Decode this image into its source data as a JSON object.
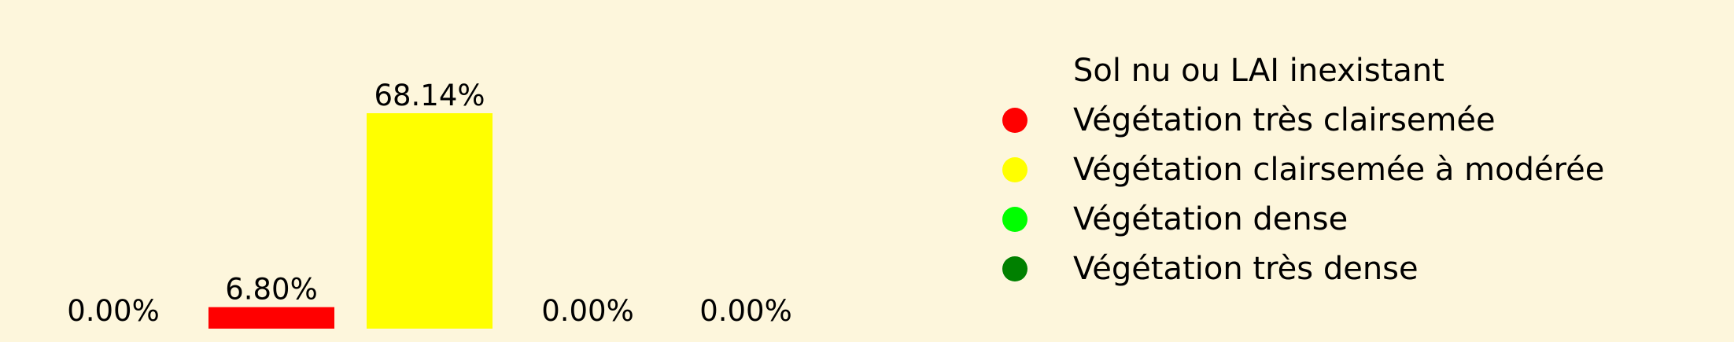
{
  "chart_data": {
    "type": "bar",
    "categories": [
      "Sol nu ou LAI inexistant",
      "Végétation très clairsemée",
      "Végétation clairsemée à modérée",
      "Végétation dense",
      "Végétation très dense"
    ],
    "values": [
      0.0,
      6.8,
      68.14,
      0.0,
      0.0
    ],
    "value_labels": [
      "0.00%",
      "6.80%",
      "68.14%",
      "0.00%",
      "0.00%"
    ],
    "colors": [
      "#fdf6dc",
      "#ff0000",
      "#ffff00",
      "#00ff00",
      "#008000"
    ],
    "ylim": [
      0,
      68.14
    ],
    "grid": false,
    "axes_visible": false,
    "legend_position": "right",
    "legend": [
      {
        "label": "Sol nu ou LAI inexistant",
        "color": "#fdf6dc"
      },
      {
        "label": "Végétation très clairsemée",
        "color": "#ff0000"
      },
      {
        "label": "Végétation clairsemée à modérée",
        "color": "#ffff00"
      },
      {
        "label": "Végétation dense",
        "color": "#00ff00"
      },
      {
        "label": "Végétation très dense",
        "color": "#008000"
      }
    ]
  },
  "background_color": "#fdf6dc"
}
